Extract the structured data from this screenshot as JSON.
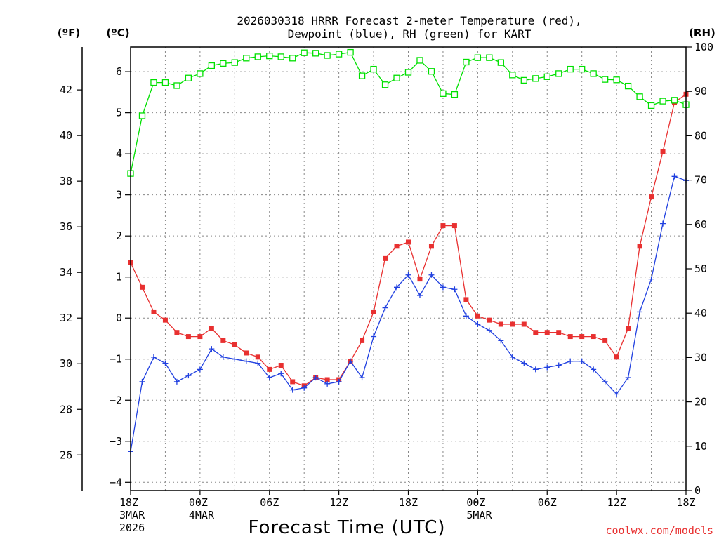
{
  "chart_data": {
    "type": "line",
    "title_line1": "2026030318 HRRR Forecast 2-meter Temperature (red),",
    "title_line2": "Dewpoint (blue), RH (green) for KART",
    "xlabel": "Forecast Time (UTC)",
    "credit": "coolwx.com/models",
    "units": {
      "fahrenheit": "(ºF)",
      "celsius": "(ºC)",
      "rh": "(RH)"
    },
    "x_range_hours": [
      0,
      48
    ],
    "x_ticks": [
      {
        "hour": 0,
        "lines": [
          "18Z",
          "3MAR",
          "2026"
        ]
      },
      {
        "hour": 6,
        "lines": [
          "00Z",
          "4MAR"
        ]
      },
      {
        "hour": 12,
        "lines": [
          "06Z"
        ]
      },
      {
        "hour": 18,
        "lines": [
          "12Z"
        ]
      },
      {
        "hour": 24,
        "lines": [
          "18Z"
        ]
      },
      {
        "hour": 30,
        "lines": [
          "00Z",
          "5MAR"
        ]
      },
      {
        "hour": 36,
        "lines": [
          "06Z"
        ]
      },
      {
        "hour": 42,
        "lines": [
          "12Z"
        ]
      },
      {
        "hour": 48,
        "lines": [
          "18Z"
        ]
      }
    ],
    "celsius_axis": {
      "range": [
        -4.2,
        6.6
      ],
      "ticks": [
        "-4",
        "-3",
        "-2",
        "-1",
        "0",
        "1",
        "2",
        "3",
        "4",
        "5",
        "6"
      ]
    },
    "fahrenheit_axis": {
      "range": [
        24.44,
        43.88
      ],
      "ticks": [
        "26",
        "28",
        "30",
        "32",
        "34",
        "36",
        "38",
        "40",
        "42"
      ]
    },
    "rh_axis": {
      "range": [
        0,
        100
      ],
      "ticks": [
        "0",
        "10",
        "20",
        "30",
        "40",
        "50",
        "60",
        "70",
        "80",
        "90",
        "100"
      ]
    },
    "colors": {
      "temperature": "#e83030",
      "dewpoint": "#2040e0",
      "rh": "#00e000",
      "grid": "#888888"
    },
    "series": [
      {
        "name": "Temperature",
        "axis": "celsius",
        "marker": "filled-square",
        "values": [
          1.35,
          0.75,
          0.15,
          -0.05,
          -0.35,
          -0.45,
          -0.45,
          -0.25,
          -0.55,
          -0.65,
          -0.85,
          -0.95,
          -1.25,
          -1.15,
          -1.55,
          -1.65,
          -1.45,
          -1.5,
          -1.5,
          -1.05,
          -0.55,
          0.15,
          1.45,
          1.75,
          1.85,
          0.95,
          1.75,
          2.25,
          2.25,
          0.45,
          0.05,
          -0.05,
          -0.15,
          -0.15,
          -0.15,
          -0.35,
          -0.35,
          -0.35,
          -0.45,
          -0.45,
          -0.45,
          -0.55,
          -0.95,
          -0.25,
          1.75,
          2.95,
          4.05,
          5.25,
          5.45
        ]
      },
      {
        "name": "Dewpoint",
        "axis": "celsius",
        "marker": "plus",
        "values": [
          -3.25,
          -1.55,
          -0.95,
          -1.1,
          -1.55,
          -1.4,
          -1.25,
          -0.75,
          -0.95,
          -1.0,
          -1.05,
          -1.1,
          -1.45,
          -1.35,
          -1.75,
          -1.7,
          -1.45,
          -1.6,
          -1.55,
          -1.05,
          -1.45,
          -0.45,
          0.25,
          0.75,
          1.05,
          0.55,
          1.05,
          0.75,
          0.7,
          0.05,
          -0.15,
          -0.3,
          -0.55,
          -0.95,
          -1.1,
          -1.25,
          -1.2,
          -1.15,
          -1.05,
          -1.05,
          -1.25,
          -1.55,
          -1.85,
          -1.45,
          0.15,
          0.95,
          2.3,
          3.45,
          3.35
        ]
      },
      {
        "name": "RH",
        "axis": "rh",
        "marker": "open-square",
        "values": [
          71.5,
          84.5,
          92.0,
          92.0,
          91.3,
          93.0,
          94.0,
          95.8,
          96.3,
          96.5,
          97.5,
          97.8,
          98.0,
          97.8,
          97.5,
          98.7,
          98.6,
          98.1,
          98.4,
          98.8,
          93.5,
          95.0,
          91.5,
          93.0,
          94.3,
          97.0,
          94.5,
          89.5,
          89.3,
          96.6,
          97.6,
          97.6,
          96.5,
          93.7,
          92.5,
          92.9,
          93.3,
          94.0,
          95.0,
          95.0,
          94.0,
          92.7,
          92.6,
          91.2,
          88.8,
          86.8,
          87.8,
          88.0,
          87.0
        ]
      }
    ]
  }
}
